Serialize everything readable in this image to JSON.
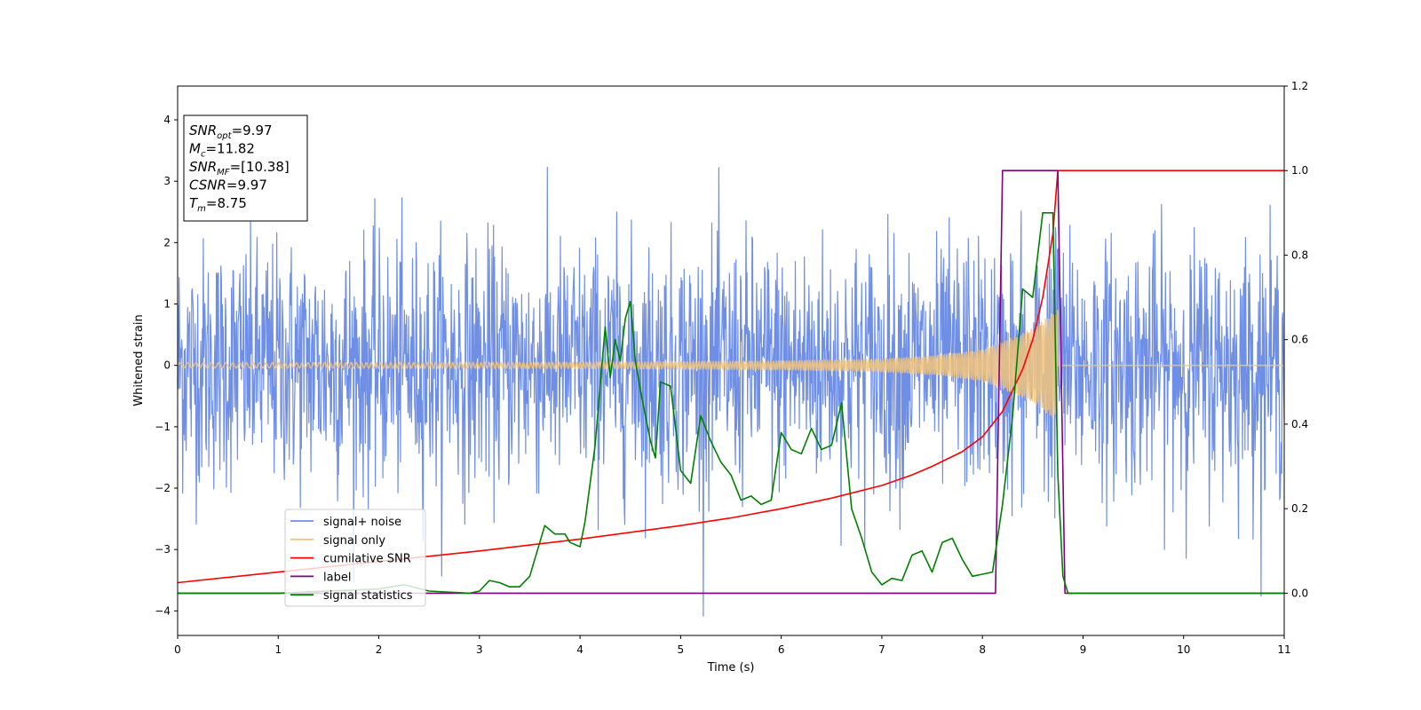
{
  "chart_data": {
    "type": "line",
    "xlabel": "Time (s)",
    "ylabel": "Whitened strain",
    "ylabel_right": "",
    "xlim": [
      0,
      11
    ],
    "ylim_left": [
      -4.4,
      4.55
    ],
    "ylim_right": [
      -0.1,
      1.2
    ],
    "x_ticks": [
      "0",
      "1",
      "2",
      "3",
      "4",
      "5",
      "6",
      "7",
      "8",
      "9",
      "10",
      "11"
    ],
    "y_left_ticks": [
      "−4",
      "−3",
      "−2",
      "−1",
      "0",
      "1",
      "2",
      "3",
      "4"
    ],
    "y_right_ticks": [
      "0.0",
      "0.2",
      "0.4",
      "0.6",
      "0.8",
      "1.0",
      "1.2"
    ],
    "annotation_lines": [
      {
        "sym": "SNR",
        "sub": "opt",
        "val": "=9.97"
      },
      {
        "sym": "M",
        "sub": "c",
        "val": "=11.82"
      },
      {
        "sym": "SNR",
        "sub": "MF",
        "val": "=[10.38]"
      },
      {
        "sym": "CSNR",
        "sub": "",
        "val": "=9.97"
      },
      {
        "sym": "T",
        "sub": "m",
        "val": "=8.75"
      }
    ],
    "legend": {
      "placement": "lower-left",
      "entries": [
        {
          "label": "signal+ noise",
          "color": "#6f8fe6"
        },
        {
          "label": "signal only",
          "color": "#f2c47a"
        },
        {
          "label": "cumilative SNR",
          "color": "#ff0000"
        },
        {
          "label": "label",
          "color": "#800080"
        },
        {
          "label": "signal statistics",
          "color": "#008000"
        }
      ]
    },
    "series": [
      {
        "name": "signal+ noise",
        "axis": "left",
        "color": "#6f8fe6",
        "kind": "noise",
        "sigma": 1.0,
        "n_points": 2200,
        "x_range": [
          0,
          11
        ]
      },
      {
        "name": "signal only",
        "axis": "left",
        "color": "#f2c47a",
        "kind": "chirp",
        "t_merge": 8.75,
        "envelope": {
          "x": [
            0,
            4,
            6,
            7,
            7.5,
            8,
            8.3,
            8.5,
            8.7,
            8.75
          ],
          "y": [
            0.04,
            0.05,
            0.07,
            0.1,
            0.15,
            0.25,
            0.45,
            0.6,
            0.85,
            0.9
          ]
        }
      },
      {
        "name": "cumilative SNR",
        "axis": "right",
        "color": "#ff0000",
        "x": [
          0,
          1,
          2,
          3,
          4,
          5,
          5.5,
          6,
          6.5,
          7,
          7.3,
          7.5,
          7.8,
          8.0,
          8.2,
          8.4,
          8.5,
          8.6,
          8.7,
          8.75,
          11
        ],
        "y": [
          0.025,
          0.05,
          0.075,
          0.1,
          0.128,
          0.16,
          0.178,
          0.2,
          0.225,
          0.255,
          0.28,
          0.3,
          0.335,
          0.37,
          0.43,
          0.53,
          0.6,
          0.7,
          0.85,
          1.0,
          1.0
        ]
      },
      {
        "name": "label",
        "axis": "right",
        "color": "#800080",
        "x": [
          0,
          8.13,
          8.2,
          8.75,
          8.82,
          11
        ],
        "y": [
          0,
          0,
          1.0,
          1.0,
          0,
          0
        ]
      },
      {
        "name": "signal statistics",
        "axis": "right",
        "color": "#008000",
        "x": [
          0,
          1,
          2,
          2.25,
          2.5,
          2.9,
          3.0,
          3.1,
          3.2,
          3.3,
          3.4,
          3.5,
          3.55,
          3.65,
          3.75,
          3.85,
          3.9,
          4.0,
          4.05,
          4.15,
          4.25,
          4.3,
          4.35,
          4.4,
          4.45,
          4.5,
          4.55,
          4.6,
          4.7,
          4.75,
          4.8,
          4.9,
          5.0,
          5.1,
          5.2,
          5.3,
          5.4,
          5.5,
          5.6,
          5.7,
          5.8,
          5.9,
          6.0,
          6.1,
          6.2,
          6.3,
          6.4,
          6.5,
          6.6,
          6.7,
          6.8,
          6.9,
          7.0,
          7.1,
          7.2,
          7.3,
          7.4,
          7.5,
          7.6,
          7.7,
          7.8,
          7.9,
          8.0,
          8.1,
          8.2,
          8.3,
          8.4,
          8.5,
          8.6,
          8.7,
          8.75,
          8.8,
          8.85,
          9.0,
          11
        ],
        "y": [
          0.0,
          0.0,
          0.01,
          0.02,
          0.005,
          0.0,
          0.005,
          0.03,
          0.025,
          0.015,
          0.015,
          0.04,
          0.08,
          0.16,
          0.14,
          0.14,
          0.12,
          0.11,
          0.17,
          0.35,
          0.63,
          0.51,
          0.6,
          0.55,
          0.65,
          0.69,
          0.55,
          0.48,
          0.36,
          0.32,
          0.5,
          0.49,
          0.29,
          0.26,
          0.42,
          0.36,
          0.31,
          0.28,
          0.22,
          0.23,
          0.21,
          0.22,
          0.38,
          0.34,
          0.33,
          0.39,
          0.34,
          0.35,
          0.45,
          0.2,
          0.13,
          0.05,
          0.02,
          0.035,
          0.03,
          0.09,
          0.1,
          0.05,
          0.12,
          0.13,
          0.08,
          0.04,
          0.045,
          0.05,
          0.21,
          0.42,
          0.72,
          0.7,
          0.9,
          0.9,
          0.28,
          0.04,
          0.0,
          0.0,
          0.0
        ]
      }
    ]
  }
}
